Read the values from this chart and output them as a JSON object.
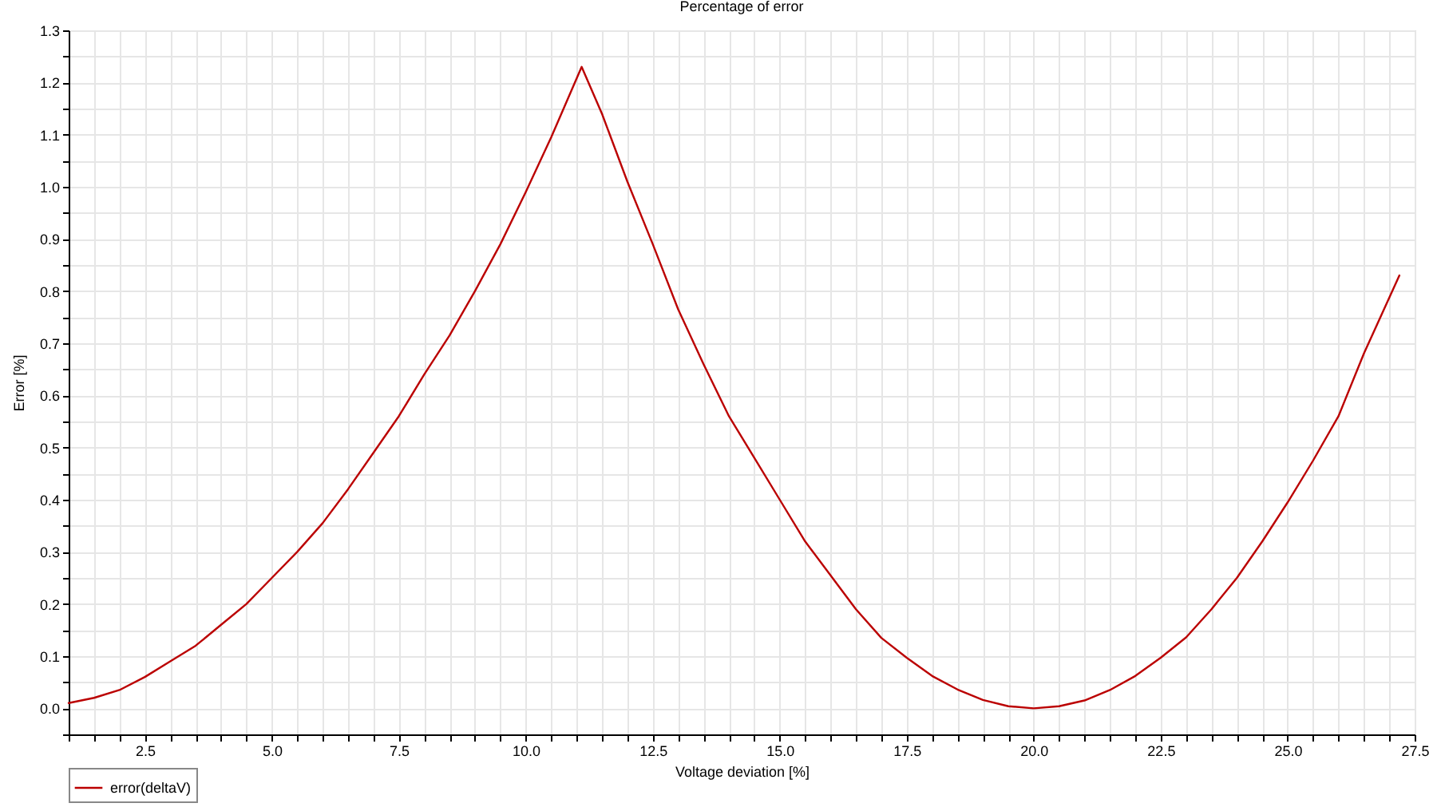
{
  "chart_data": {
    "type": "line",
    "title": "Percentage of error",
    "xlabel": "Voltage deviation [%]",
    "ylabel": "Error [%]",
    "x": [
      1.0,
      1.5,
      2.0,
      2.5,
      3.0,
      3.5,
      4.0,
      4.5,
      5.0,
      5.5,
      6.0,
      6.5,
      7.0,
      7.5,
      8.0,
      8.5,
      9.0,
      9.5,
      10.0,
      10.5,
      11.1,
      11.5,
      12.0,
      12.5,
      13.0,
      13.5,
      14.0,
      14.5,
      15.0,
      15.5,
      16.0,
      16.5,
      17.0,
      17.5,
      18.0,
      18.5,
      19.0,
      19.5,
      20.0,
      20.5,
      21.0,
      21.5,
      22.0,
      22.5,
      23.0,
      23.5,
      24.0,
      24.5,
      25.0,
      25.5,
      26.0,
      26.5,
      27.2
    ],
    "series": [
      {
        "name": "error(deltaV)",
        "color": "#bb0000",
        "values": [
          0.01,
          0.02,
          0.035,
          0.06,
          0.09,
          0.12,
          0.16,
          0.2,
          0.25,
          0.3,
          0.355,
          0.42,
          0.49,
          0.56,
          0.64,
          0.715,
          0.8,
          0.89,
          0.99,
          1.095,
          1.23,
          1.14,
          1.01,
          0.89,
          0.765,
          0.66,
          0.56,
          0.48,
          0.4,
          0.32,
          0.255,
          0.19,
          0.135,
          0.097,
          0.062,
          0.036,
          0.016,
          0.004,
          0.0,
          0.004,
          0.015,
          0.035,
          0.062,
          0.097,
          0.136,
          0.19,
          0.25,
          0.32,
          0.395,
          0.475,
          0.56,
          0.68,
          0.83
        ]
      }
    ],
    "xlim": [
      1.0,
      27.5
    ],
    "ylim": [
      -0.05,
      1.3
    ],
    "xticks": [
      {
        "value": 1.0,
        "label": null
      },
      {
        "value": 1.5,
        "label": null
      },
      {
        "value": 2.0,
        "label": null
      },
      2.5,
      {
        "value": 3.0,
        "label": null
      },
      {
        "value": 3.5,
        "label": null
      },
      {
        "value": 4.0,
        "label": null
      },
      {
        "value": 4.5,
        "label": null
      },
      {
        "value": 5.0,
        "label": "5.0"
      },
      {
        "value": 5.5,
        "label": null
      },
      {
        "value": 6.0,
        "label": null
      },
      {
        "value": 6.5,
        "label": null
      },
      {
        "value": 7.0,
        "label": null
      },
      7.5,
      {
        "value": 8.0,
        "label": null
      },
      {
        "value": 8.5,
        "label": null
      },
      {
        "value": 9.0,
        "label": null
      },
      {
        "value": 9.5,
        "label": null
      },
      {
        "value": 10.0,
        "label": "10.0"
      },
      {
        "value": 10.5,
        "label": null
      },
      {
        "value": 11.0,
        "label": null
      },
      {
        "value": 11.5,
        "label": null
      },
      {
        "value": 12.0,
        "label": null
      },
      12.5,
      {
        "value": 13.0,
        "label": null
      },
      {
        "value": 13.5,
        "label": null
      },
      {
        "value": 14.0,
        "label": null
      },
      {
        "value": 14.5,
        "label": null
      },
      {
        "value": 15.0,
        "label": "15.0"
      },
      {
        "value": 15.5,
        "label": null
      },
      {
        "value": 16.0,
        "label": null
      },
      {
        "value": 16.5,
        "label": null
      },
      {
        "value": 17.0,
        "label": null
      },
      17.5,
      {
        "value": 18.0,
        "label": null
      },
      {
        "value": 18.5,
        "label": null
      },
      {
        "value": 19.0,
        "label": null
      },
      {
        "value": 19.5,
        "label": null
      },
      {
        "value": 20.0,
        "label": "20.0"
      },
      {
        "value": 20.5,
        "label": null
      },
      {
        "value": 21.0,
        "label": null
      },
      {
        "value": 21.5,
        "label": null
      },
      {
        "value": 22.0,
        "label": null
      },
      22.5,
      {
        "value": 23.0,
        "label": null
      },
      {
        "value": 23.5,
        "label": null
      },
      {
        "value": 24.0,
        "label": null
      },
      {
        "value": 24.5,
        "label": null
      },
      {
        "value": 25.0,
        "label": "25.0"
      },
      {
        "value": 25.5,
        "label": null
      },
      {
        "value": 26.0,
        "label": null
      },
      {
        "value": 26.5,
        "label": null
      },
      {
        "value": 27.0,
        "label": null
      },
      27.5
    ],
    "yticks": [
      {
        "value": -0.05,
        "label": null
      },
      {
        "value": 0.0,
        "label": "0.0"
      },
      {
        "value": 0.05,
        "label": null
      },
      0.1,
      {
        "value": 0.15,
        "label": null
      },
      0.2,
      {
        "value": 0.25,
        "label": null
      },
      0.3,
      {
        "value": 0.35,
        "label": null
      },
      0.4,
      {
        "value": 0.45,
        "label": null
      },
      0.5,
      {
        "value": 0.55,
        "label": null
      },
      0.6,
      {
        "value": 0.65,
        "label": null
      },
      0.7,
      {
        "value": 0.75,
        "label": null
      },
      0.8,
      {
        "value": 0.85,
        "label": null
      },
      0.9,
      {
        "value": 0.95,
        "label": null
      },
      {
        "value": 1.0,
        "label": "1.0"
      },
      {
        "value": 1.05,
        "label": null
      },
      1.1,
      {
        "value": 1.15,
        "label": null
      },
      1.2,
      {
        "value": 1.25,
        "label": null
      },
      1.3
    ],
    "grid": true,
    "legend": "bottom left",
    "line_style": "solid"
  }
}
